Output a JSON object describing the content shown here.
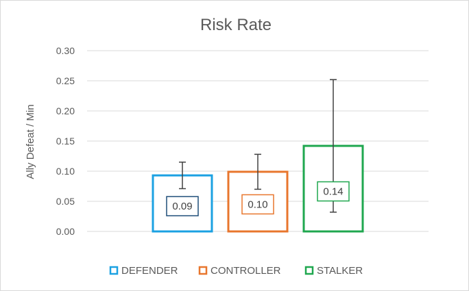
{
  "chart_data": {
    "type": "bar",
    "title": "Risk Rate",
    "xlabel": "",
    "ylabel": "Ally Defeat / Min",
    "ylim": [
      0,
      0.3
    ],
    "yticks": [
      "0.00",
      "0.05",
      "0.10",
      "0.15",
      "0.20",
      "0.25",
      "0.30"
    ],
    "grid": true,
    "legend_position": "bottom",
    "series": [
      {
        "name": "DEFENDER",
        "value": 0.093,
        "label": "0.09",
        "err_low": 0.071,
        "err_high": 0.115,
        "color": "#1ba1e2"
      },
      {
        "name": "CONTROLLER",
        "value": 0.099,
        "label": "0.10",
        "err_low": 0.07,
        "err_high": 0.128,
        "color": "#e8762d"
      },
      {
        "name": "STALKER",
        "value": 0.142,
        "label": "0.14",
        "err_low": 0.032,
        "err_high": 0.252,
        "color": "#1fa74f"
      }
    ],
    "error_bar_color": "#404040",
    "grid_color": "#d9d9d9"
  }
}
